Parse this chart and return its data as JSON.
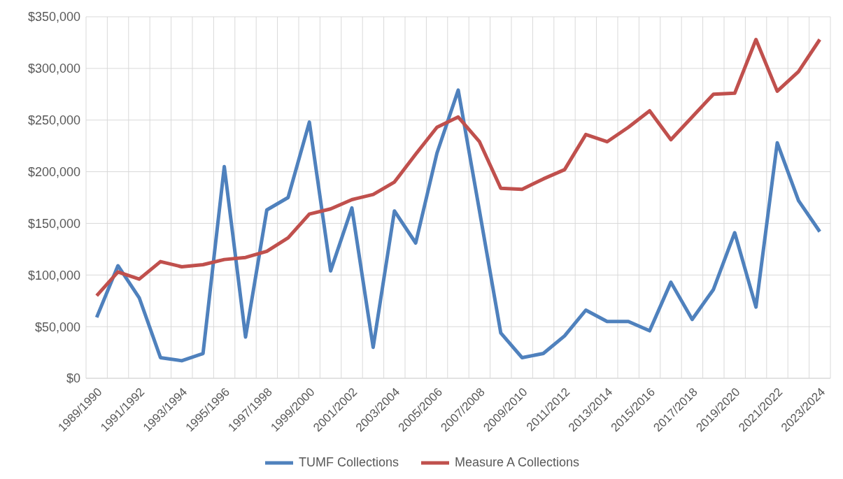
{
  "chart_data": {
    "type": "line",
    "categories": [
      "1989/1990",
      null,
      "1991/1992",
      null,
      "1993/1994",
      null,
      "1995/1996",
      null,
      "1997/1998",
      null,
      "1999/2000",
      null,
      "2001/2002",
      null,
      "2003/2004",
      null,
      "2005/2006",
      null,
      "2007/2008",
      null,
      "2009/2010",
      null,
      "2011/2012",
      null,
      "2013/2014",
      null,
      "2015/2016",
      null,
      "2017/2018",
      null,
      "2019/2020",
      null,
      "2021/2022",
      null,
      "2023/2024"
    ],
    "series": [
      {
        "name": "TUMF Collections",
        "color": "#4f81bd",
        "values": [
          59000,
          109000,
          78000,
          20000,
          17000,
          24000,
          205000,
          40000,
          163000,
          175000,
          248000,
          104000,
          165000,
          30000,
          162000,
          131000,
          218000,
          279000,
          162000,
          44000,
          20000,
          24000,
          41000,
          66000,
          55000,
          55000,
          46000,
          93000,
          57000,
          86000,
          141000,
          69000,
          228000,
          172000,
          142000
        ]
      },
      {
        "name": "Measure A Collections",
        "color": "#c0504d",
        "values": [
          80000,
          103000,
          96000,
          113000,
          108000,
          110000,
          115000,
          117000,
          123000,
          136000,
          159000,
          164000,
          173000,
          178000,
          190000,
          217000,
          243000,
          253000,
          229000,
          184000,
          183000,
          193000,
          202000,
          236000,
          229000,
          243000,
          259000,
          231000,
          253000,
          275000,
          276000,
          328000,
          278000,
          297000,
          328000
        ]
      }
    ],
    "ylim": [
      0,
      350000
    ],
    "yticks": [
      {
        "value": 0,
        "label": "$0"
      },
      {
        "value": 50000,
        "label": "$50,000"
      },
      {
        "value": 100000,
        "label": "$100,000"
      },
      {
        "value": 150000,
        "label": "$150,000"
      },
      {
        "value": 200000,
        "label": "$200,000"
      },
      {
        "value": 250000,
        "label": "$250,000"
      },
      {
        "value": 300000,
        "label": "$300,000"
      },
      {
        "value": 350000,
        "label": "$350,000"
      }
    ],
    "grid": true,
    "legend": "bottom",
    "marker": "none",
    "line_style": "solid"
  }
}
